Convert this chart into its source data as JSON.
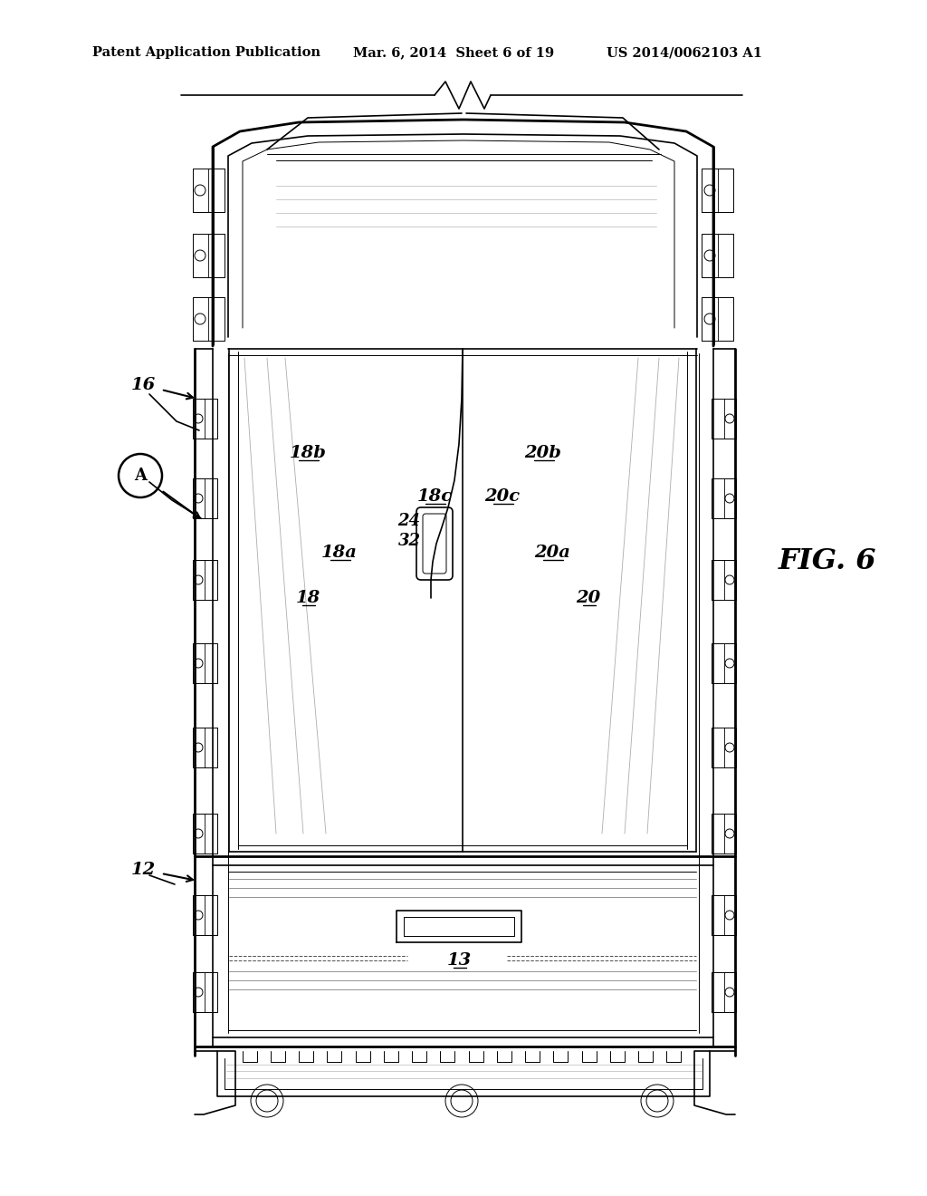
{
  "background_color": "#ffffff",
  "header_left": "Patent Application Publication",
  "header_mid": "Mar. 6, 2014  Sheet 6 of 19",
  "header_right": "US 2014/0062103 A1",
  "fig_label": "FIG. 6",
  "line_color": "#000000",
  "lw_thin": 0.7,
  "lw_med": 1.2,
  "lw_thick": 2.0,
  "lw_xthick": 3.0
}
